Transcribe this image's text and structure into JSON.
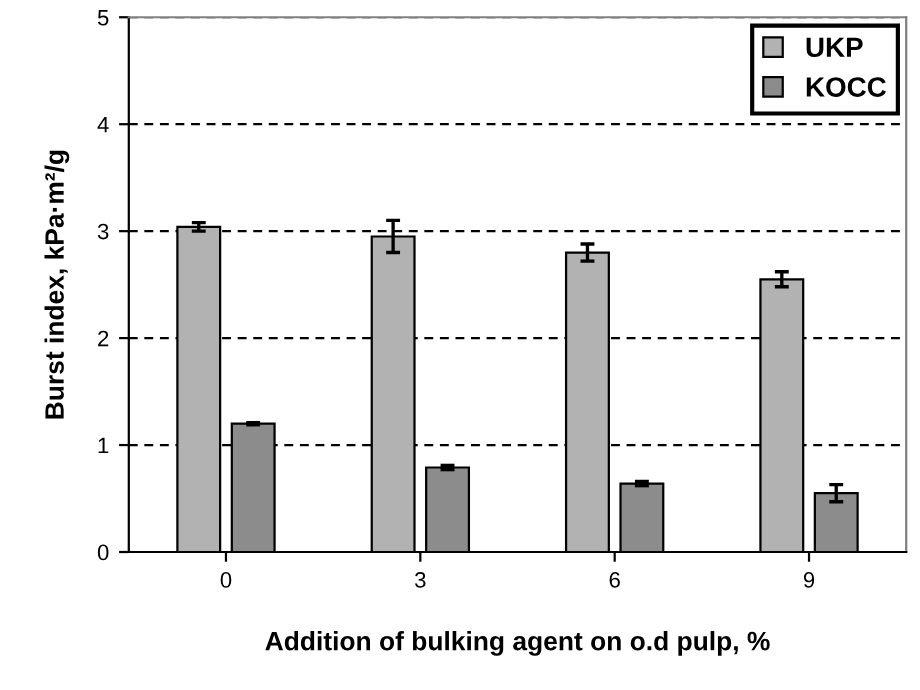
{
  "chart_data": {
    "type": "bar",
    "xlabel": "Addition of bulking agent on o.d pulp, %",
    "ylabel": "Burst index, kPa·m²/g",
    "categories": [
      "0",
      "3",
      "6",
      "9"
    ],
    "series": [
      {
        "name": "UKP",
        "color": "#b2b2b2",
        "values": [
          3.04,
          2.95,
          2.8,
          2.55
        ],
        "errors": [
          0.04,
          0.15,
          0.08,
          0.07
        ]
      },
      {
        "name": "KOCC",
        "color": "#8c8c8c",
        "values": [
          1.2,
          0.79,
          0.64,
          0.55
        ],
        "errors": [
          0.01,
          0.02,
          0.02,
          0.08
        ]
      }
    ],
    "ylim": [
      0,
      5
    ],
    "yticks": [
      0,
      1,
      2,
      3,
      4,
      5
    ],
    "grid": "y",
    "legend": "top right"
  }
}
